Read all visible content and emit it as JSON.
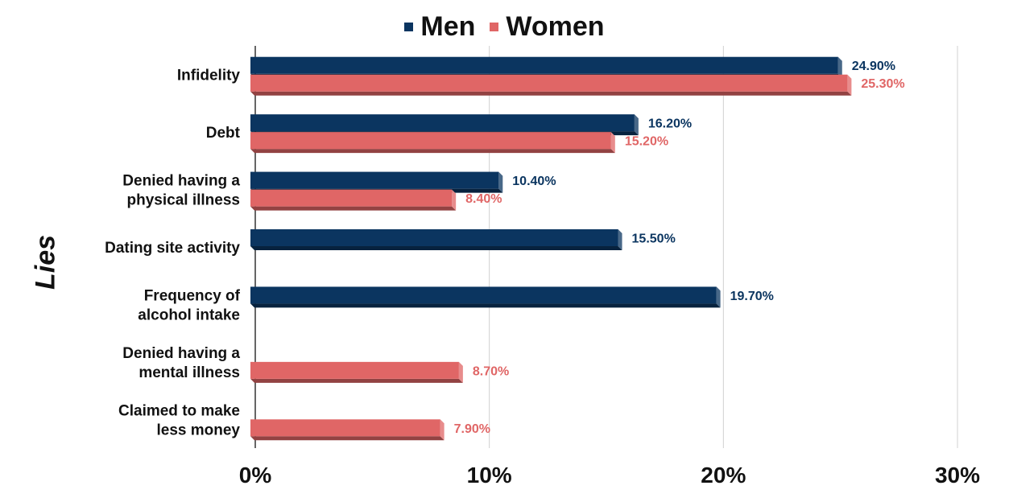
{
  "chart_data": {
    "type": "bar",
    "orientation": "horizontal",
    "ylabel": "Lies",
    "xlabel": "",
    "categories": [
      [
        "Infidelity"
      ],
      [
        "Debt"
      ],
      [
        "Denied having a",
        "physical illness"
      ],
      [
        "Dating site activity"
      ],
      [
        "Frequency of",
        "alcohol intake"
      ],
      [
        "Denied having a",
        "mental illness"
      ],
      [
        "Claimed to make",
        "less money"
      ]
    ],
    "series": [
      {
        "name": "Men",
        "color": "#0b3560",
        "values": [
          24.9,
          16.2,
          10.4,
          15.5,
          19.7,
          null,
          null
        ],
        "labels": [
          "24.90%",
          "16.20%",
          "10.40%",
          "15.50%",
          "19.70%",
          null,
          null
        ]
      },
      {
        "name": "Women",
        "color": "#e06666",
        "values": [
          25.3,
          15.2,
          8.4,
          null,
          null,
          8.7,
          7.9
        ],
        "labels": [
          "25.30%",
          "15.20%",
          "8.40%",
          null,
          null,
          "8.70%",
          "7.90%"
        ]
      }
    ],
    "xlim": [
      0,
      30
    ],
    "xticks": [
      "0%",
      "10%",
      "20%",
      "30%"
    ],
    "xtick_values": [
      0,
      10,
      20,
      30
    ],
    "grid": "vertical",
    "legend": "top-center"
  }
}
